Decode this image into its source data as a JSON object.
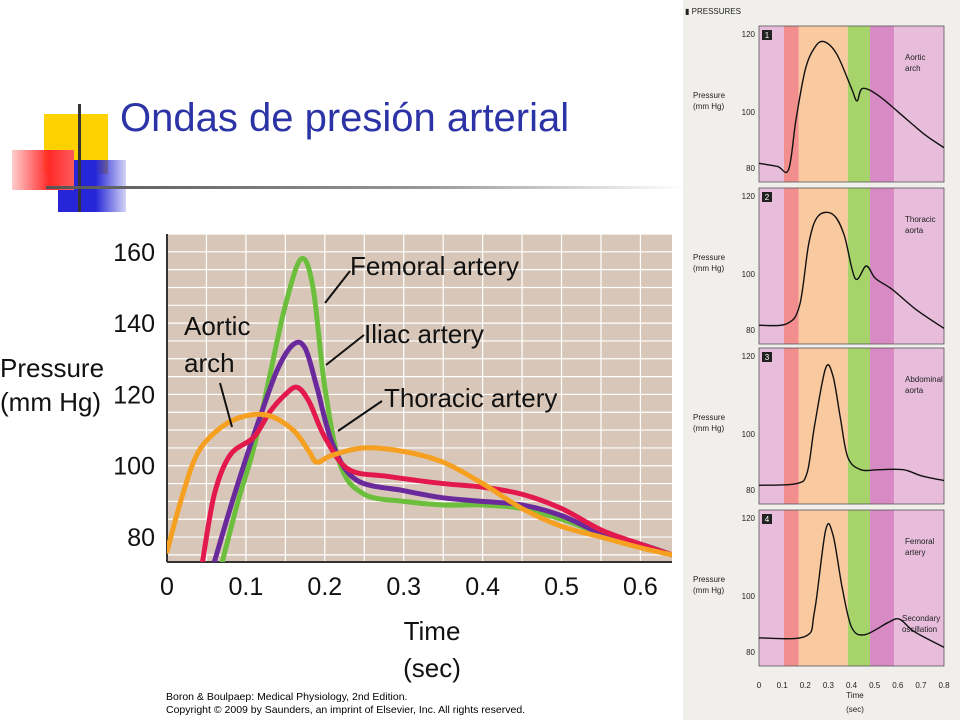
{
  "slide": {
    "title": "Ondas de presión arterial"
  },
  "credit": {
    "line1": "Boron & Boulpaep: Medical Physiology, 2nd Edition.",
    "line2": "Copyright © 2009 by Saunders, an imprint of Elsevier, Inc. All rights reserved."
  },
  "colors": {
    "title": "#2b33a6",
    "plot_bg": "#d8c7b8",
    "femoral": "#6cbf3c",
    "iliac": "#6a2a9c",
    "thoracic": "#e3194d",
    "aortic": "#f6a021"
  },
  "chart_data": [
    {
      "type": "line",
      "title": "",
      "ylabel": "Pressure (mm Hg)",
      "xlabel": "Time (sec)",
      "xlim": [
        0,
        0.64
      ],
      "ylim": [
        73,
        165
      ],
      "grid": true,
      "x_ticks": [
        "0",
        "0.1",
        "0.2",
        "0.3",
        "0.4",
        "0.5",
        "0.6"
      ],
      "y_ticks": [
        "80",
        "100",
        "120",
        "140",
        "160"
      ],
      "annotations": [
        "Femoral artery",
        "Iliac artery",
        "Thoracic artery",
        "Aortic arch"
      ],
      "series": [
        {
          "name": "Femoral artery",
          "color": "#6cbf3c",
          "points": [
            [
              0.07,
              73
            ],
            [
              0.09,
              90
            ],
            [
              0.11,
              105
            ],
            [
              0.13,
              125
            ],
            [
              0.15,
              145
            ],
            [
              0.17,
              158
            ],
            [
              0.185,
              150
            ],
            [
              0.2,
              122
            ],
            [
              0.22,
              100
            ],
            [
              0.25,
              92
            ],
            [
              0.3,
              90
            ],
            [
              0.35,
              89
            ],
            [
              0.4,
              89
            ],
            [
              0.45,
              88
            ],
            [
              0.5,
              85
            ],
            [
              0.55,
              81
            ],
            [
              0.6,
              78
            ],
            [
              0.64,
              75
            ]
          ]
        },
        {
          "name": "Iliac artery",
          "color": "#6a2a9c",
          "points": [
            [
              0.06,
              73
            ],
            [
              0.08,
              88
            ],
            [
              0.1,
              102
            ],
            [
              0.12,
              115
            ],
            [
              0.14,
              127
            ],
            [
              0.16,
              134
            ],
            [
              0.175,
              133
            ],
            [
              0.19,
              122
            ],
            [
              0.21,
              106
            ],
            [
              0.24,
              96
            ],
            [
              0.3,
              93
            ],
            [
              0.35,
              91
            ],
            [
              0.4,
              90
            ],
            [
              0.45,
              89
            ],
            [
              0.5,
              86
            ],
            [
              0.55,
              81
            ],
            [
              0.6,
              78
            ],
            [
              0.64,
              75
            ]
          ]
        },
        {
          "name": "Thoracic artery",
          "color": "#e3194d",
          "points": [
            [
              0.045,
              73
            ],
            [
              0.06,
              92
            ],
            [
              0.08,
              103
            ],
            [
              0.11,
              108
            ],
            [
              0.13,
              115
            ],
            [
              0.15,
              120
            ],
            [
              0.165,
              122
            ],
            [
              0.18,
              118
            ],
            [
              0.2,
              108
            ],
            [
              0.23,
              99
            ],
            [
              0.28,
              97
            ],
            [
              0.35,
              95
            ],
            [
              0.4,
              94
            ],
            [
              0.45,
              92
            ],
            [
              0.5,
              88
            ],
            [
              0.55,
              82
            ],
            [
              0.6,
              78
            ],
            [
              0.64,
              75
            ]
          ]
        },
        {
          "name": "Aortic arch",
          "color": "#f6a021",
          "points": [
            [
              0,
              76
            ],
            [
              0.02,
              92
            ],
            [
              0.04,
              104
            ],
            [
              0.07,
              111
            ],
            [
              0.1,
              114
            ],
            [
              0.13,
              114
            ],
            [
              0.16,
              110
            ],
            [
              0.18,
              104
            ],
            [
              0.19,
              101
            ],
            [
              0.21,
              103
            ],
            [
              0.25,
              105
            ],
            [
              0.3,
              104
            ],
            [
              0.35,
              101
            ],
            [
              0.4,
              95
            ],
            [
              0.45,
              88
            ],
            [
              0.5,
              83
            ],
            [
              0.55,
              80
            ],
            [
              0.6,
              77
            ],
            [
              0.64,
              75
            ]
          ]
        }
      ]
    },
    {
      "type": "line",
      "title": "PRESSURES",
      "ylabel": "Pressure (mm Hg)",
      "xlabel": "Time (sec)",
      "x_ticks": [
        "0",
        "0.1",
        "0.2",
        "0.3",
        "0.4",
        "0.5",
        "0.6",
        "0.7",
        "0.8"
      ],
      "panels": [
        {
          "number": "1",
          "label": "Aortic arch",
          "y_ticks": [
            "80",
            "100",
            "120"
          ]
        },
        {
          "number": "2",
          "label": "Thoracic aorta",
          "y_ticks": [
            "80",
            "100",
            "120"
          ]
        },
        {
          "number": "3",
          "label": "Abdominal aorta",
          "y_ticks": [
            "80",
            "100",
            "120"
          ]
        },
        {
          "number": "4",
          "label": "Femoral artery",
          "y_ticks": [
            "80",
            "100",
            "120"
          ],
          "annotation": "Secondary oscillation"
        }
      ]
    }
  ]
}
